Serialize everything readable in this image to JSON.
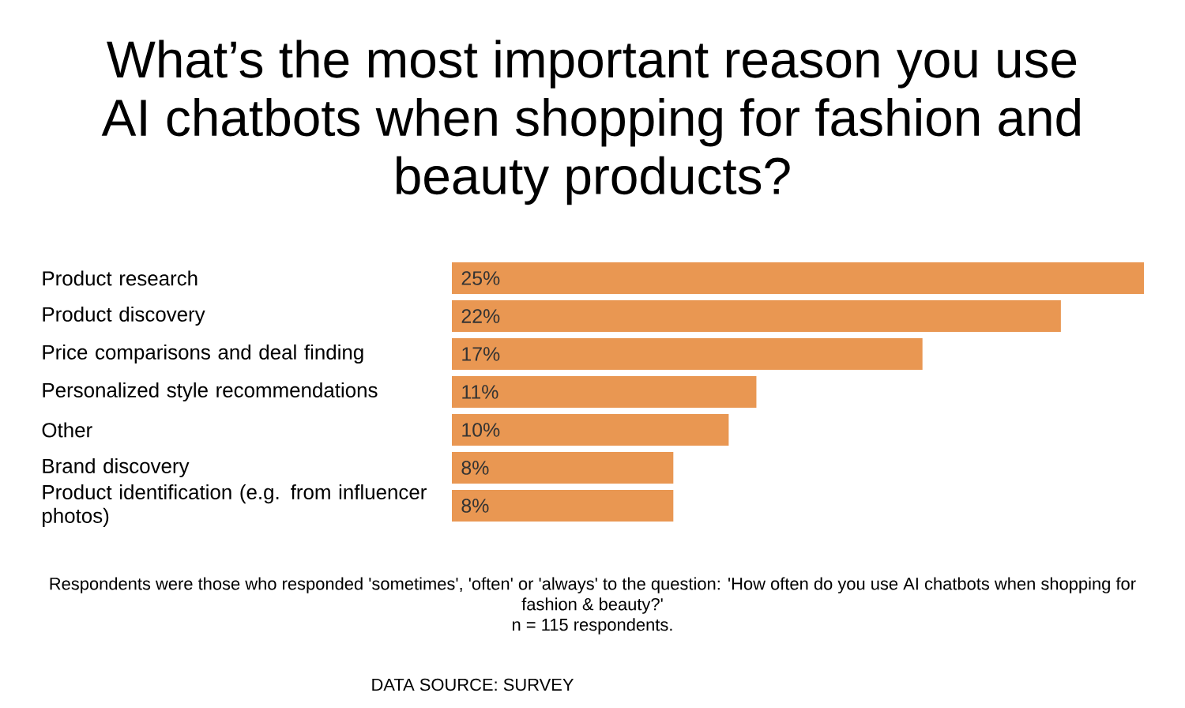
{
  "chart_data": {
    "type": "bar",
    "orientation": "horizontal",
    "title": "What’s the most important reason you use AI chatbots when shopping for fashion and beauty products?",
    "categories": [
      "Product research",
      "Product discovery",
      "Price comparisons and deal finding",
      "Personalized style recommendations",
      "Other",
      "Brand discovery",
      "Product identification (e.g. from influencer photos)"
    ],
    "values": [
      25,
      22,
      17,
      11,
      10,
      8,
      8
    ],
    "value_labels": [
      "25%",
      "22%",
      "17%",
      "11%",
      "10%",
      "8%",
      "8%"
    ],
    "color": "#e99752",
    "xlim": [
      0,
      25
    ],
    "annotations": [
      "Respondents were those who responded 'sometimes', 'often' or 'always' to the question: 'How often do you use AI chatbots when shopping for fashion & beauty?'",
      "n = 115 respondents.",
      "DATA SOURCE: SURVEY"
    ]
  }
}
